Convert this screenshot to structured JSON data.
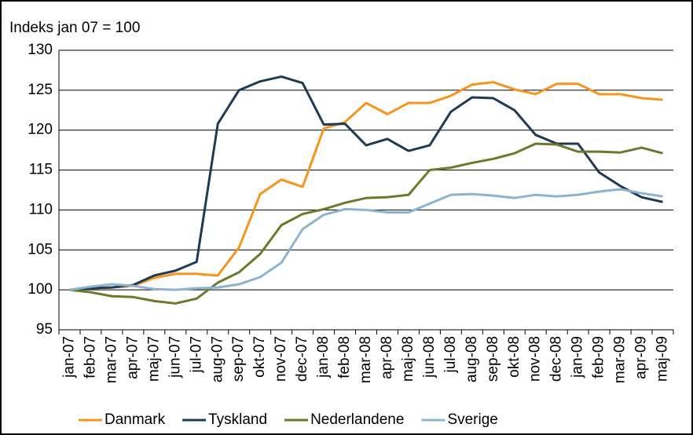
{
  "chart_data": {
    "type": "line",
    "subtitle": "Indeks jan 07 = 100",
    "categories": [
      "jan-07",
      "feb-07",
      "mar-07",
      "apr-07",
      "maj-07",
      "jun-07",
      "jul-07",
      "aug-07",
      "sep-07",
      "okt-07",
      "nov-07",
      "dec-07",
      "jan-08",
      "feb-08",
      "mar-08",
      "apr-08",
      "maj-08",
      "jun-08",
      "jul-08",
      "aug-08",
      "sep-08",
      "okt-08",
      "nov-08",
      "dec-08",
      "jan-09",
      "feb-09",
      "mar-09",
      "apr-09",
      "maj-09"
    ],
    "series": [
      {
        "name": "Danmark",
        "color": "#f7941d",
        "values": [
          100,
          100.2,
          100.3,
          100.5,
          101.5,
          102,
          102,
          101.8,
          105.3,
          112,
          113.8,
          112.9,
          120.2,
          121,
          123.4,
          122,
          123.4,
          123.4,
          124.3,
          125.7,
          126,
          125.1,
          124.5,
          125.8,
          125.8,
          124.5,
          124.5,
          124,
          123.8
        ]
      },
      {
        "name": "Tyskland",
        "color": "#1f3a53",
        "values": [
          100,
          100.2,
          100.3,
          100.6,
          101.8,
          102.4,
          103.5,
          120.8,
          125,
          126.1,
          126.7,
          125.9,
          120.7,
          120.8,
          118.1,
          118.9,
          117.4,
          118.1,
          122.3,
          124.1,
          124,
          122.5,
          119.4,
          118.3,
          118.3,
          114.7,
          113,
          111.6,
          111
        ]
      },
      {
        "name": "Nederlandene",
        "color": "#6b7a2a",
        "values": [
          100,
          99.7,
          99.2,
          99.1,
          98.6,
          98.3,
          98.9,
          100.9,
          102.2,
          104.5,
          108.1,
          109.5,
          110.1,
          110.9,
          111.5,
          111.6,
          111.9,
          115,
          115.3,
          115.9,
          116.4,
          117.1,
          118.3,
          118.2,
          117.3,
          117.3,
          117.2,
          117.8,
          117.1
        ]
      },
      {
        "name": "Sverige",
        "color": "#8cb4d0",
        "values": [
          100,
          100.4,
          100.7,
          100.5,
          100.1,
          100,
          100.2,
          100.3,
          100.7,
          101.6,
          103.4,
          107.6,
          109.4,
          110.1,
          110,
          109.7,
          109.7,
          110.8,
          111.9,
          112,
          111.8,
          111.5,
          111.9,
          111.7,
          111.9,
          112.3,
          112.6,
          112.1,
          111.7
        ]
      }
    ],
    "ylim": [
      95,
      130
    ],
    "yticks": [
      95,
      100,
      105,
      110,
      115,
      120,
      125,
      130
    ],
    "grid": true,
    "legend": "bottom"
  }
}
